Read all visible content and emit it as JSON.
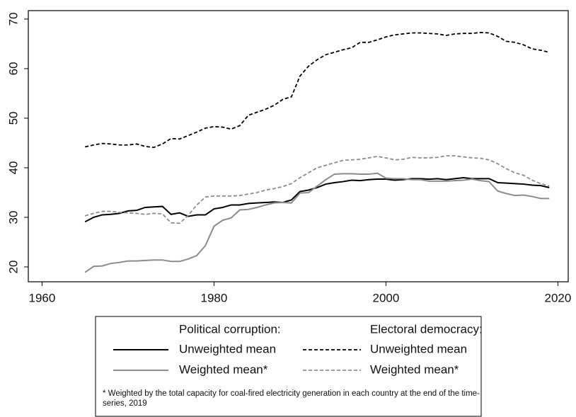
{
  "chart_data": {
    "type": "line",
    "x": [
      1965,
      1966,
      1967,
      1968,
      1969,
      1970,
      1971,
      1972,
      1973,
      1974,
      1975,
      1976,
      1977,
      1978,
      1979,
      1980,
      1981,
      1982,
      1983,
      1984,
      1985,
      1986,
      1987,
      1988,
      1989,
      1990,
      1991,
      1992,
      1993,
      1994,
      1995,
      1996,
      1997,
      1998,
      1999,
      2000,
      2001,
      2002,
      2003,
      2004,
      2005,
      2006,
      2007,
      2008,
      2009,
      2010,
      2011,
      2012,
      2013,
      2014,
      2015,
      2016,
      2017,
      2018,
      2019
    ],
    "xlim": [
      1958.4,
      2021.2
    ],
    "xticks": [
      1960,
      1980,
      2000,
      2020
    ],
    "ylim": [
      17,
      71.7
    ],
    "yticks": [
      20,
      30,
      40,
      50,
      60,
      70
    ],
    "grid": false,
    "legend_titles": [
      "Political corruption:",
      "Electoral democracy:"
    ],
    "note": "* Weighted by the total capacity for coal-fired electricity generation in each country at the end of the time-series, 2019",
    "series": [
      {
        "name": "Unweighted mean",
        "group": 0,
        "color": "#000000",
        "dashed": false,
        "values": [
          29.1,
          30.0,
          30.5,
          30.6,
          30.8,
          31.3,
          31.4,
          32.0,
          32.1,
          32.2,
          30.6,
          30.9,
          30.2,
          30.5,
          30.5,
          31.7,
          32.0,
          32.5,
          32.5,
          32.8,
          32.9,
          33.0,
          33.1,
          33.0,
          33.5,
          35.2,
          35.5,
          36.0,
          36.7,
          37.0,
          37.2,
          37.5,
          37.4,
          37.6,
          37.7,
          37.7,
          37.5,
          37.6,
          37.8,
          37.8,
          37.7,
          37.8,
          37.6,
          37.8,
          38.0,
          37.8,
          37.8,
          37.8,
          37.0,
          36.9,
          36.8,
          36.7,
          36.5,
          36.4,
          36.0
        ]
      },
      {
        "name": "Weighted mean*",
        "group": 0,
        "color": "#8c8c8c",
        "dashed": false,
        "values": [
          18.9,
          20.1,
          20.2,
          20.7,
          20.9,
          21.2,
          21.2,
          21.3,
          21.4,
          21.4,
          21.1,
          21.1,
          21.6,
          22.3,
          24.3,
          28.2,
          29.4,
          29.9,
          31.5,
          31.6,
          32.0,
          32.5,
          32.9,
          33.0,
          32.9,
          34.9,
          35.0,
          36.3,
          37.6,
          38.7,
          38.8,
          38.8,
          38.7,
          38.7,
          38.9,
          37.9,
          37.8,
          37.8,
          37.6,
          37.6,
          37.3,
          37.3,
          37.3,
          37.4,
          37.5,
          37.7,
          37.4,
          37.2,
          35.3,
          34.8,
          34.4,
          34.5,
          34.2,
          33.8,
          33.8
        ]
      },
      {
        "name": "Unweighted mean",
        "group": 1,
        "color": "#000000",
        "dashed": true,
        "values": [
          44.2,
          44.6,
          44.9,
          44.8,
          44.6,
          44.6,
          44.8,
          44.3,
          44.1,
          44.8,
          45.9,
          45.8,
          46.5,
          47.2,
          48.0,
          48.3,
          48.2,
          47.8,
          48.5,
          50.6,
          51.2,
          51.8,
          52.6,
          53.8,
          54.3,
          58.5,
          60.5,
          61.8,
          62.8,
          63.3,
          63.8,
          64.2,
          65.3,
          65.3,
          65.8,
          66.4,
          66.8,
          67.0,
          67.2,
          67.2,
          67.1,
          67.0,
          66.7,
          67.0,
          67.1,
          67.1,
          67.3,
          67.2,
          66.5,
          65.5,
          65.3,
          64.8,
          64.0,
          63.7,
          63.3
        ]
      },
      {
        "name": "Weighted mean*",
        "group": 1,
        "color": "#8c8c8c",
        "dashed": true,
        "values": [
          30.3,
          30.8,
          31.2,
          31.2,
          31.0,
          30.9,
          30.8,
          30.6,
          30.8,
          30.7,
          28.9,
          28.8,
          30.4,
          32.5,
          34.1,
          34.3,
          34.3,
          34.3,
          34.4,
          34.7,
          35.0,
          35.5,
          35.8,
          36.2,
          36.8,
          38.0,
          39.0,
          40.0,
          40.5,
          41.0,
          41.5,
          41.6,
          41.7,
          42.0,
          42.3,
          42.0,
          41.6,
          41.7,
          42.1,
          42.0,
          42.0,
          42.1,
          42.4,
          42.4,
          42.2,
          42.0,
          41.9,
          41.6,
          40.8,
          39.8,
          39.0,
          38.5,
          37.5,
          36.8,
          36.3
        ]
      }
    ]
  }
}
